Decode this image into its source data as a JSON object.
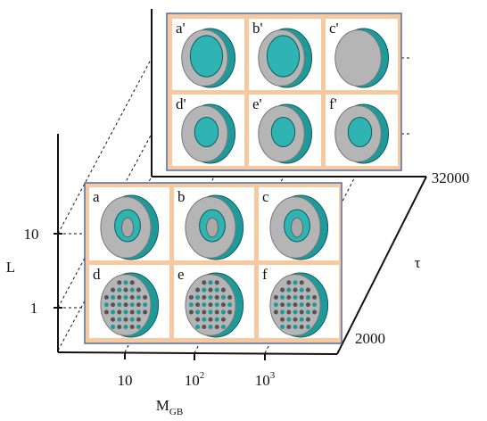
{
  "axes": {
    "x": {
      "label": "M",
      "label_sub": "GB",
      "ticks": [
        {
          "base": "10"
        },
        {
          "base": "10",
          "exp": "2"
        },
        {
          "base": "10",
          "exp": "3"
        }
      ]
    },
    "y": {
      "label": "L",
      "ticks": [
        "10",
        "1"
      ]
    },
    "z": {
      "label": "τ",
      "ticks": [
        "32000",
        "2000"
      ]
    }
  },
  "panels": {
    "back": [
      "a'",
      "b'",
      "c'",
      "d'",
      "e'",
      "f'"
    ],
    "front": [
      "a",
      "b",
      "c",
      "d",
      "e",
      "f"
    ]
  }
}
